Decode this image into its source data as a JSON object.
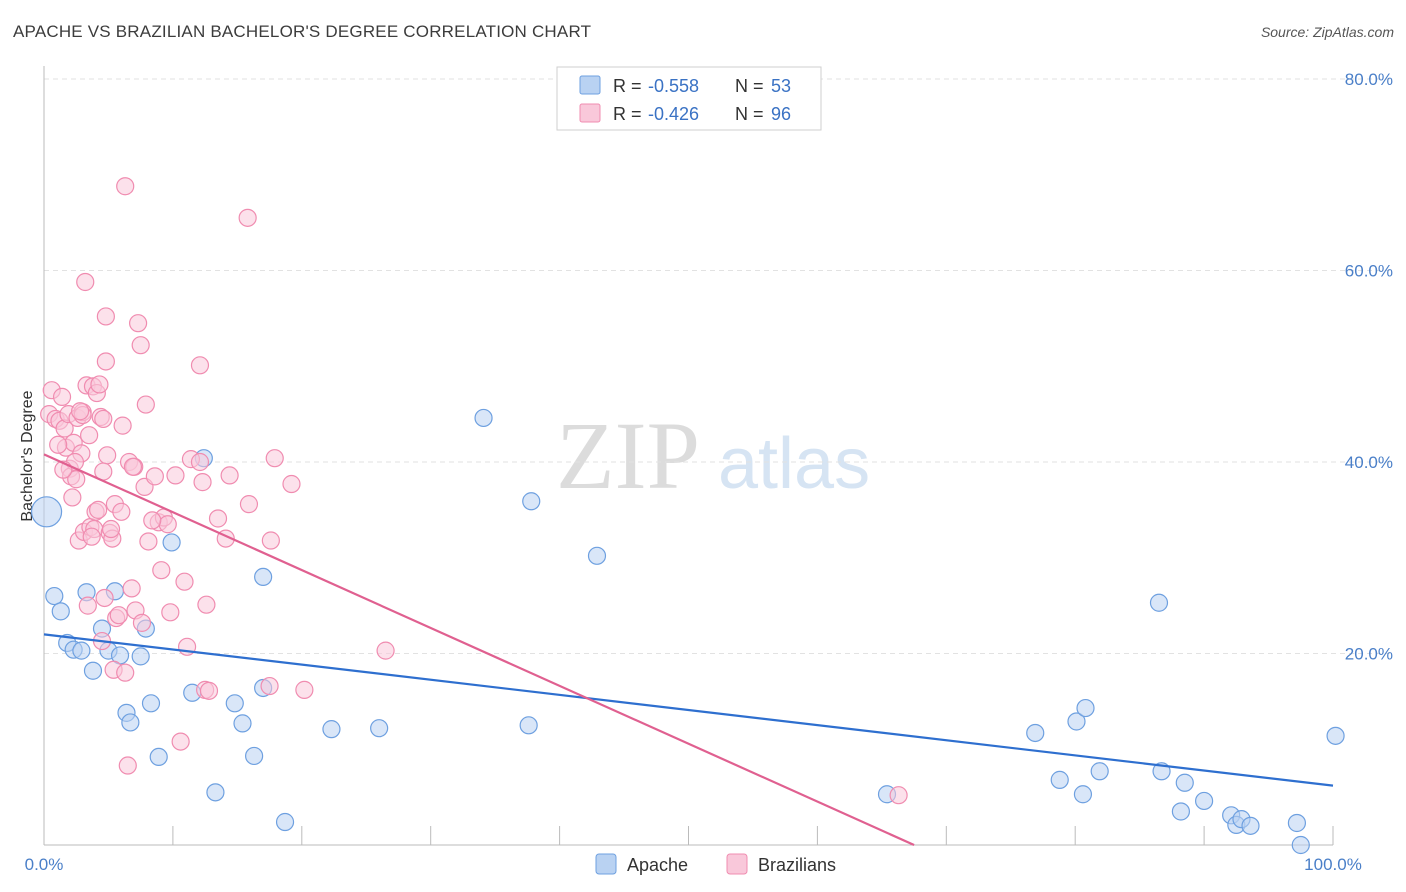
{
  "title": "APACHE VS BRAZILIAN BACHELOR'S DEGREE CORRELATION CHART",
  "source": "Source: ZipAtlas.com",
  "watermark": {
    "zip": "ZIP",
    "atlas": "atlas"
  },
  "chart_data": {
    "type": "scatter",
    "xlabel": "",
    "ylabel": "Bachelor's Degree",
    "xlim": [
      0,
      100
    ],
    "ylim": [
      0,
      80
    ],
    "x_tick_labels": {
      "min": "0.0%",
      "max": "100.0%"
    },
    "y_ticks": [
      {
        "value": 20,
        "label": "20.0%"
      },
      {
        "value": 40,
        "label": "40.0%"
      },
      {
        "value": 60,
        "label": "60.0%"
      },
      {
        "value": 80,
        "label": "80.0%"
      }
    ],
    "grid": true,
    "legend": {
      "position": "top-center",
      "entries": [
        {
          "name": "Apache",
          "r_label": "R =",
          "r_value": "-0.558",
          "n_label": "N =",
          "n_value": "53"
        },
        {
          "name": "Brazilians",
          "r_label": "R =",
          "r_value": "-0.426",
          "n_label": "N =",
          "n_value": "96"
        }
      ]
    },
    "bottom_legend": [
      "Apache",
      "Brazilians"
    ],
    "series": [
      {
        "name": "Apache",
        "color": "#6ea0e0",
        "fill": "#b9d2f2",
        "trend_color": "#2e6fcf",
        "trend": [
          [
            0,
            22.0
          ],
          [
            100,
            6.2
          ]
        ],
        "points": [
          [
            0.2,
            34.8
          ],
          [
            0.8,
            26.0
          ],
          [
            1.3,
            24.4
          ],
          [
            1.8,
            21.1
          ],
          [
            2.3,
            20.4
          ],
          [
            2.9,
            20.3
          ],
          [
            3.3,
            26.4
          ],
          [
            3.8,
            18.2
          ],
          [
            4.5,
            22.6
          ],
          [
            5.0,
            20.3
          ],
          [
            5.5,
            26.5
          ],
          [
            5.9,
            19.8
          ],
          [
            6.4,
            13.8
          ],
          [
            6.7,
            12.8
          ],
          [
            7.5,
            19.7
          ],
          [
            7.9,
            22.6
          ],
          [
            8.3,
            14.8
          ],
          [
            8.9,
            9.2
          ],
          [
            9.9,
            31.6
          ],
          [
            11.5,
            15.9
          ],
          [
            12.4,
            40.4
          ],
          [
            13.3,
            5.5
          ],
          [
            14.8,
            14.8
          ],
          [
            15.4,
            12.7
          ],
          [
            16.3,
            9.3
          ],
          [
            17.0,
            16.4
          ],
          [
            17.0,
            28.0
          ],
          [
            18.7,
            2.4
          ],
          [
            22.3,
            12.1
          ],
          [
            26.0,
            12.2
          ],
          [
            34.1,
            44.6
          ],
          [
            37.6,
            12.5
          ],
          [
            37.8,
            35.9
          ],
          [
            42.9,
            30.2
          ],
          [
            65.4,
            5.3
          ],
          [
            76.9,
            11.7
          ],
          [
            78.8,
            6.8
          ],
          [
            80.1,
            12.9
          ],
          [
            80.6,
            5.3
          ],
          [
            80.8,
            14.3
          ],
          [
            81.9,
            7.7
          ],
          [
            86.5,
            25.3
          ],
          [
            86.7,
            7.7
          ],
          [
            88.2,
            3.5
          ],
          [
            88.5,
            6.5
          ],
          [
            90.0,
            4.6
          ],
          [
            92.1,
            3.1
          ],
          [
            92.5,
            2.1
          ],
          [
            92.9,
            2.7
          ],
          [
            93.6,
            2.0
          ],
          [
            97.2,
            2.3
          ],
          [
            97.5,
            0.0
          ],
          [
            100.2,
            11.4
          ]
        ]
      },
      {
        "name": "Brazilians",
        "color": "#f08cb0",
        "fill": "#f9c8da",
        "trend_color": "#e06090",
        "trend": [
          [
            0,
            40.8
          ],
          [
            67.5,
            0
          ]
        ],
        "points": [
          [
            0.4,
            45.0
          ],
          [
            0.6,
            47.5
          ],
          [
            0.9,
            44.5
          ],
          [
            1.2,
            44.3
          ],
          [
            1.4,
            46.8
          ],
          [
            1.6,
            43.5
          ],
          [
            1.7,
            41.5
          ],
          [
            1.9,
            45.0
          ],
          [
            2.0,
            39.3
          ],
          [
            2.1,
            38.5
          ],
          [
            2.2,
            36.3
          ],
          [
            2.3,
            42.0
          ],
          [
            2.5,
            38.2
          ],
          [
            2.6,
            44.6
          ],
          [
            2.7,
            31.8
          ],
          [
            2.9,
            40.9
          ],
          [
            3.0,
            45.2
          ],
          [
            3.1,
            32.7
          ],
          [
            3.2,
            58.8
          ],
          [
            3.3,
            48.0
          ],
          [
            3.4,
            25.0
          ],
          [
            3.5,
            42.8
          ],
          [
            3.6,
            33.2
          ],
          [
            3.8,
            47.9
          ],
          [
            3.9,
            33.0
          ],
          [
            4.0,
            34.8
          ],
          [
            4.1,
            47.2
          ],
          [
            4.2,
            35.0
          ],
          [
            4.3,
            48.1
          ],
          [
            4.4,
            44.7
          ],
          [
            4.5,
            21.3
          ],
          [
            4.6,
            44.5
          ],
          [
            4.7,
            25.8
          ],
          [
            4.8,
            55.2
          ],
          [
            4.8,
            50.5
          ],
          [
            4.9,
            40.7
          ],
          [
            5.1,
            32.6
          ],
          [
            5.3,
            32.0
          ],
          [
            5.4,
            18.3
          ],
          [
            5.5,
            35.6
          ],
          [
            5.6,
            23.7
          ],
          [
            5.8,
            24.0
          ],
          [
            6.0,
            34.8
          ],
          [
            6.1,
            43.8
          ],
          [
            6.3,
            18.0
          ],
          [
            6.5,
            8.3
          ],
          [
            6.6,
            40.0
          ],
          [
            6.8,
            26.8
          ],
          [
            7.0,
            39.5
          ],
          [
            7.1,
            24.5
          ],
          [
            7.3,
            54.5
          ],
          [
            7.5,
            52.2
          ],
          [
            7.6,
            23.2
          ],
          [
            7.8,
            37.4
          ],
          [
            7.9,
            46.0
          ],
          [
            8.1,
            31.7
          ],
          [
            8.6,
            38.5
          ],
          [
            8.9,
            33.7
          ],
          [
            9.1,
            28.7
          ],
          [
            9.3,
            34.2
          ],
          [
            9.6,
            33.5
          ],
          [
            9.8,
            24.3
          ],
          [
            10.2,
            38.6
          ],
          [
            10.6,
            10.8
          ],
          [
            10.9,
            27.5
          ],
          [
            11.1,
            20.7
          ],
          [
            11.4,
            40.3
          ],
          [
            12.1,
            40.0
          ],
          [
            12.1,
            50.1
          ],
          [
            12.3,
            37.9
          ],
          [
            12.5,
            16.2
          ],
          [
            12.6,
            25.1
          ],
          [
            12.8,
            16.1
          ],
          [
            13.5,
            34.1
          ],
          [
            14.1,
            32.0
          ],
          [
            14.4,
            38.6
          ],
          [
            15.8,
            65.5
          ],
          [
            15.9,
            35.6
          ],
          [
            17.5,
            16.6
          ],
          [
            17.6,
            31.8
          ],
          [
            17.9,
            40.4
          ],
          [
            19.2,
            37.7
          ],
          [
            20.2,
            16.2
          ],
          [
            26.5,
            20.3
          ],
          [
            6.3,
            68.8
          ],
          [
            3.0,
            44.9
          ],
          [
            2.4,
            40.0
          ],
          [
            5.2,
            33.0
          ],
          [
            8.4,
            33.9
          ],
          [
            1.1,
            41.8
          ],
          [
            3.7,
            32.2
          ],
          [
            4.6,
            39.0
          ],
          [
            66.3,
            5.2
          ],
          [
            6.9,
            39.5
          ],
          [
            2.8,
            45.3
          ],
          [
            1.5,
            39.2
          ]
        ]
      }
    ]
  }
}
